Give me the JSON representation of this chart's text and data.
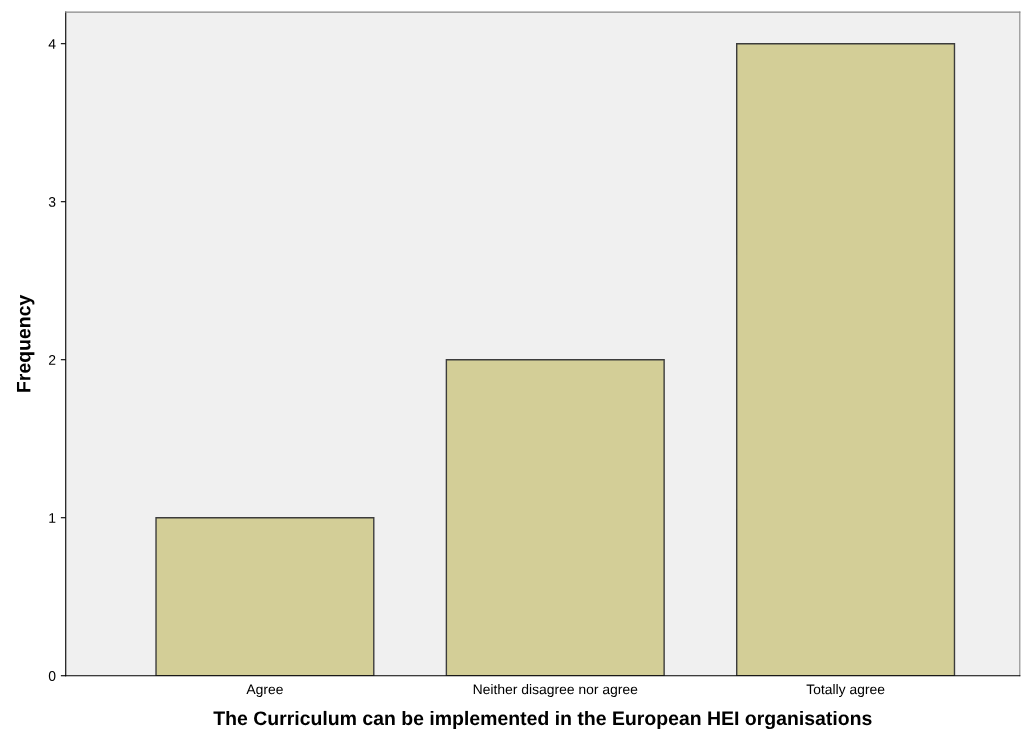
{
  "chart_data": {
    "type": "bar",
    "xlabel": "The Curriculum can be implemented in the European HEI organisations",
    "ylabel": "Frequency",
    "categories": [
      "Agree",
      "Neither disagree nor agree",
      "Totally agree"
    ],
    "values": [
      1,
      2,
      4
    ],
    "color": "#d3ce97",
    "ylim": [
      0,
      4.2
    ],
    "yticks": [
      0,
      1,
      2,
      3,
      4
    ],
    "grid": false,
    "legend": false
  }
}
